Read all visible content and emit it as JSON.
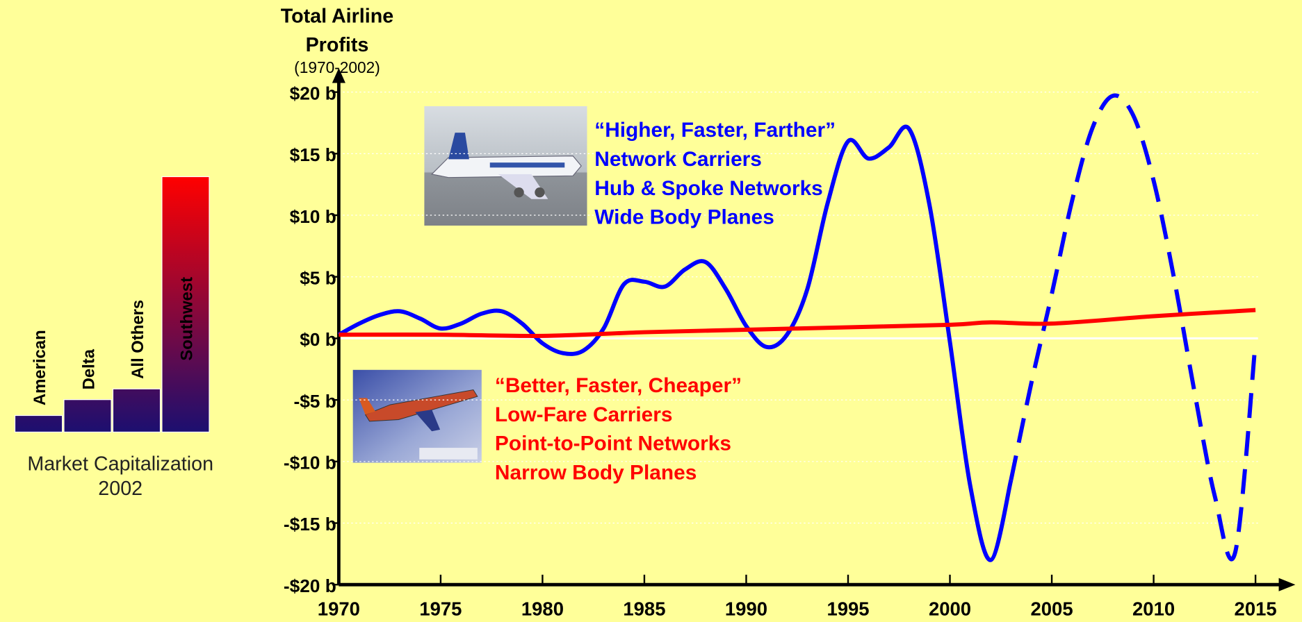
{
  "chart_data": [
    {
      "type": "bar",
      "title": "Market Capitalization 2002",
      "categories": [
        "American",
        "Delta",
        "All Others",
        "Southwest"
      ],
      "values": [
        6.5,
        12.7,
        16.9,
        100
      ],
      "gradient": [
        "#ff0000",
        "#1c0f70"
      ]
    },
    {
      "type": "line",
      "title": "Total Airline Profits",
      "subtitle": "(1970-2002)",
      "xlim": [
        1970,
        2015
      ],
      "xticks": [
        1970,
        1975,
        1980,
        1985,
        1990,
        1995,
        2000,
        2005,
        2010,
        2015
      ],
      "ylim": [
        -20,
        20
      ],
      "yticks": [
        {
          "value": 20,
          "label": "$20 b"
        },
        {
          "value": 15,
          "label": "$15 b"
        },
        {
          "value": 10,
          "label": "$10 b"
        },
        {
          "value": 5,
          "label": "$5 b"
        },
        {
          "value": 0,
          "label": "$0 b"
        },
        {
          "value": -5,
          "label": "-$5 b"
        },
        {
          "value": -10,
          "label": "-$10 b"
        },
        {
          "value": -15,
          "label": "-$15 b"
        },
        {
          "value": -20,
          "label": "-$20 b"
        }
      ],
      "grid": true,
      "series": [
        {
          "color": "#0000ff",
          "x": [
            1970,
            1971,
            1972,
            1973,
            1974,
            1975,
            1976,
            1977,
            1978,
            1979,
            1980,
            1981,
            1982,
            1983,
            1984,
            1985,
            1986,
            1987,
            1988,
            1989,
            1990,
            1991,
            1992,
            1993,
            1994,
            1995,
            1996,
            1997,
            1998,
            1999,
            2000,
            2001,
            2002,
            2003
          ],
          "values": [
            0.3,
            1.2,
            1.9,
            2.2,
            1.6,
            0.8,
            1.2,
            2.0,
            2.2,
            1.2,
            -0.4,
            -1.2,
            -1.0,
            0.8,
            4.4,
            4.6,
            4.2,
            5.6,
            6.2,
            4.0,
            1.0,
            -0.7,
            0.3,
            4.0,
            11.0,
            16.0,
            14.6,
            15.5,
            17.0,
            10.8,
            -0.3,
            -12.0,
            -18.0,
            -11.5
          ]
        },
        {
          "color": "#0000ff",
          "dashed": true,
          "x": [
            2003,
            2004,
            2005,
            2006,
            2007,
            2008,
            2009,
            2010,
            2011,
            2012,
            2013,
            2014,
            2015
          ],
          "values": [
            -11.5,
            -3.6,
            3.6,
            11.2,
            17.1,
            19.7,
            18.1,
            12.8,
            4.9,
            -4.3,
            -12.8,
            -17.4,
            -0.3
          ]
        },
        {
          "color": "#ff0000",
          "x": [
            1970,
            1975,
            1980,
            1985,
            1990,
            1995,
            2000,
            2002,
            2005,
            2010,
            2015
          ],
          "values": [
            0.3,
            0.3,
            0.2,
            0.5,
            0.7,
            0.9,
            1.1,
            1.3,
            1.2,
            1.8,
            2.3
          ]
        }
      ],
      "annotations": [
        {
          "color": "#0000ff",
          "lines": [
            "“Higher, Faster, Farther”",
            "Network Carriers",
            "Hub & Spoke Networks",
            "Wide Body Planes"
          ]
        },
        {
          "color": "#ff0000",
          "lines": [
            "“Better, Faster, Cheaper”",
            "Low-Fare Carriers",
            "Point-to-Point Networks",
            "Narrow Body Planes"
          ]
        }
      ]
    }
  ]
}
